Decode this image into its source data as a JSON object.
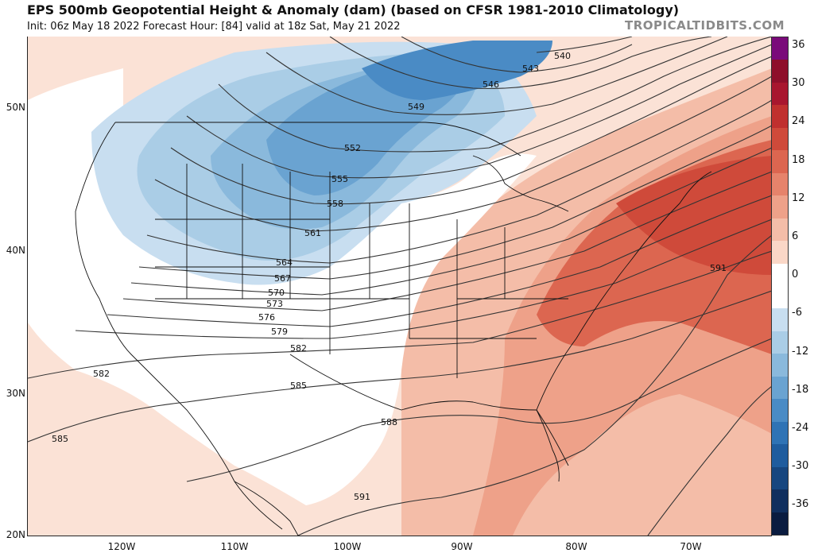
{
  "header": {
    "title": "EPS 500mb Geopotential Height & Anomaly (dam) (based on CFSR 1981-2010 Climatology)",
    "subtitle": "Init: 06z May 18 2022   Forecast Hour: [84]   valid at 18z Sat, May 21 2022",
    "brand": "TROPICALTIDBITS.COM"
  },
  "axes": {
    "lat_labels": [
      "50N",
      "40N",
      "30N",
      "20N"
    ],
    "lon_labels": [
      "120W",
      "110W",
      "100W",
      "90W",
      "80W",
      "70W"
    ]
  },
  "colorbar": {
    "labels": [
      "36",
      "30",
      "24",
      "18",
      "12",
      "6",
      "0",
      "-6",
      "-12",
      "-18",
      "-24",
      "-30",
      "-36"
    ],
    "colors": [
      "#7a0a7a",
      "#8e0f2a",
      "#a8162e",
      "#c0302e",
      "#cf4a3a",
      "#dc6650",
      "#e6836b",
      "#eea189",
      "#f4bda8",
      "#fad7c7",
      "#ffffff",
      "#ffffff",
      "#c8def0",
      "#aacde6",
      "#8ab9dc",
      "#6aa3d1",
      "#4a8bc5",
      "#2f73b5",
      "#1f5c9e",
      "#17467f",
      "#102f5e",
      "#0a1c40"
    ]
  },
  "contour_labels": [
    "540",
    "543",
    "546",
    "549",
    "552",
    "555",
    "558",
    "561",
    "564",
    "567",
    "570",
    "573",
    "576",
    "579",
    "582",
    "585",
    "588",
    "591"
  ],
  "map_labels": [
    {
      "text": "540"
    },
    {
      "text": "543"
    },
    {
      "text": "546"
    },
    {
      "text": "549"
    },
    {
      "text": "552"
    },
    {
      "text": "555"
    },
    {
      "text": "558"
    },
    {
      "text": "561"
    },
    {
      "text": "564"
    },
    {
      "text": "567"
    },
    {
      "text": "570"
    },
    {
      "text": "573"
    },
    {
      "text": "576"
    },
    {
      "text": "579"
    },
    {
      "text": "582"
    },
    {
      "text": "582"
    },
    {
      "text": "585"
    },
    {
      "text": "585"
    },
    {
      "text": "588"
    },
    {
      "text": "591"
    },
    {
      "text": "591"
    }
  ]
}
